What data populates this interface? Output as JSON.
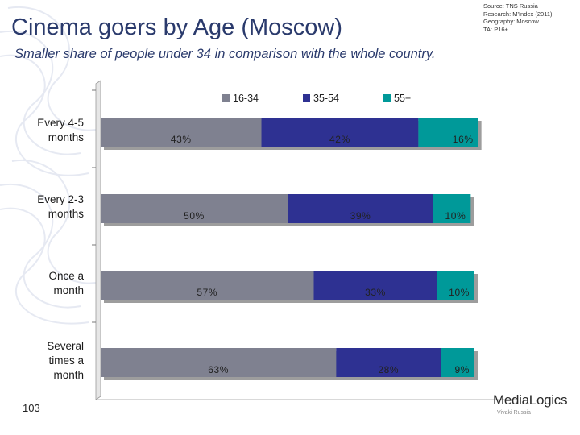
{
  "header": {
    "title": "Cinema goers by Age (Moscow)",
    "subtitle": "Smaller share of people under 34 in comparison with the whole country."
  },
  "source": {
    "lines": [
      "Source: TNS Russia",
      "Research: M'Index (2011)",
      "Geography: Moscow",
      "TA: P16+"
    ]
  },
  "page_number": "103",
  "logo": {
    "name": "MediaLogics",
    "tagline": "Vivaki Russia"
  },
  "colors": {
    "series_16_34": "#7f8190",
    "series_35_54": "#2e3192",
    "series_55_plus": "#009999",
    "title": "#2a3a6c"
  },
  "chart_data": {
    "type": "bar",
    "orientation": "horizontal",
    "stacked": true,
    "categories": [
      [
        "Every 4-5",
        "months"
      ],
      [
        "Every 2-3",
        "months"
      ],
      [
        "Once a",
        "month"
      ],
      [
        "Several",
        "times a",
        "month"
      ]
    ],
    "series": [
      {
        "name": "16-34",
        "values": [
          43,
          50,
          57,
          63
        ],
        "labels": [
          "43%",
          "50%",
          "57%",
          "63%"
        ]
      },
      {
        "name": "35-54",
        "values": [
          42,
          39,
          33,
          28
        ],
        "labels": [
          "42%",
          "39%",
          "33%",
          "28%"
        ]
      },
      {
        "name": "55+",
        "values": [
          16,
          10,
          10,
          9
        ],
        "labels": [
          "16%",
          "10%",
          "10%",
          "9%"
        ]
      }
    ],
    "title": "",
    "xlabel": "",
    "ylabel": "",
    "legend_position": "top",
    "grid": false
  }
}
